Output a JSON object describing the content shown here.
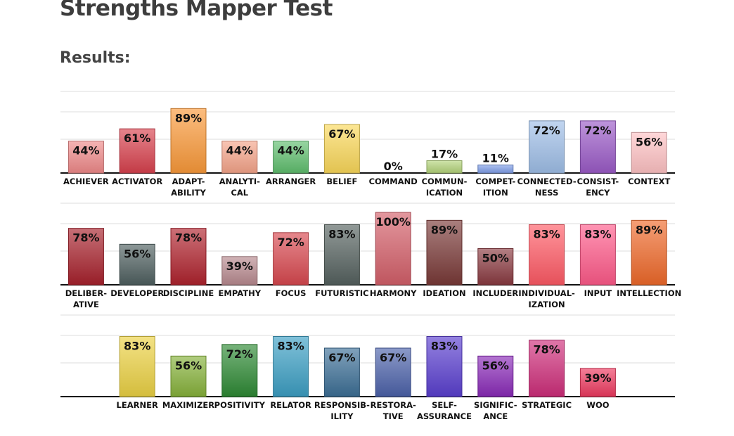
{
  "header": {
    "title": "Strengths Mapper Test",
    "results_label": "Results:"
  },
  "chart_data": [
    {
      "type": "bar",
      "ylim": [
        0,
        100
      ],
      "grid": true,
      "categories": [
        "ACHIEVER",
        "ACTIVATOR",
        "ADAPT-ABILITY",
        "ANALYTI-CAL",
        "ARRANGER",
        "BELIEF",
        "COMMAND",
        "COMMUN-ICATION",
        "COMPET-ITION",
        "CONNECTED-NESS",
        "CONSIST-ENCY",
        "CONTEXT"
      ],
      "values": [
        44,
        61,
        89,
        44,
        44,
        67,
        0,
        17,
        11,
        72,
        72,
        56
      ],
      "value_labels": [
        "44%",
        "61%",
        "89%",
        "44%",
        "44%",
        "67%",
        "0%",
        "17%",
        "11%",
        "72%",
        "72%",
        "56%"
      ],
      "colors": [
        "#f08a8a",
        "#d9414e",
        "#fb9a3a",
        "#f6a48a",
        "#5fbf6e",
        "#fbd95a",
        "#bbbbbb",
        "#b4d47a",
        "#7f9ee8",
        "#9fbfe8",
        "#9b5bc8",
        "#ffc2c4"
      ]
    },
    {
      "type": "bar",
      "ylim": [
        0,
        100
      ],
      "grid": true,
      "categories": [
        "DELIBER-ATIVE",
        "DEVELOPER",
        "DISCIPLINE",
        "EMPATHY",
        "FOCUS",
        "FUTURISTIC",
        "HARMONY",
        "IDEATION",
        "INCLUDER",
        "INDIVIDUAL-IZATION",
        "INPUT",
        "INTELLECTION"
      ],
      "values": [
        78,
        56,
        78,
        39,
        72,
        83,
        100,
        89,
        50,
        83,
        83,
        89
      ],
      "value_labels": [
        "78%",
        "56%",
        "78%",
        "39%",
        "72%",
        "83%",
        "100%",
        "89%",
        "50%",
        "83%",
        "83%",
        "89%"
      ],
      "colors": [
        "#a8212c",
        "#4f6060",
        "#b0232e",
        "#b88a8f",
        "#d9484f",
        "#56625f",
        "#d45f6a",
        "#7a3a38",
        "#8a3a40",
        "#ff5a65",
        "#ff5a8a",
        "#f06a2a"
      ]
    },
    {
      "type": "bar",
      "ylim": [
        0,
        100
      ],
      "grid": true,
      "categories": [
        "LEARNER",
        "MAXIMIZER",
        "POSITIVITY",
        "RELATOR",
        "RESPONSIB-ILITY",
        "RESTORA-TIVE",
        "SELF-ASSURANCE",
        "SIGNIFIC-ANCE",
        "STRATEGIC",
        "WOO"
      ],
      "values": [
        83,
        56,
        72,
        83,
        67,
        67,
        83,
        56,
        78,
        39
      ],
      "value_labels": [
        "83%",
        "56%",
        "72%",
        "83%",
        "67%",
        "67%",
        "83%",
        "56%",
        "78%",
        "39%"
      ],
      "colors": [
        "#ecd244",
        "#86b23a",
        "#2e8a34",
        "#3c9fc4",
        "#3c6f96",
        "#4c62aa",
        "#5a3fd0",
        "#8a2ab8",
        "#cf2e7a",
        "#ee3a60"
      ]
    }
  ]
}
